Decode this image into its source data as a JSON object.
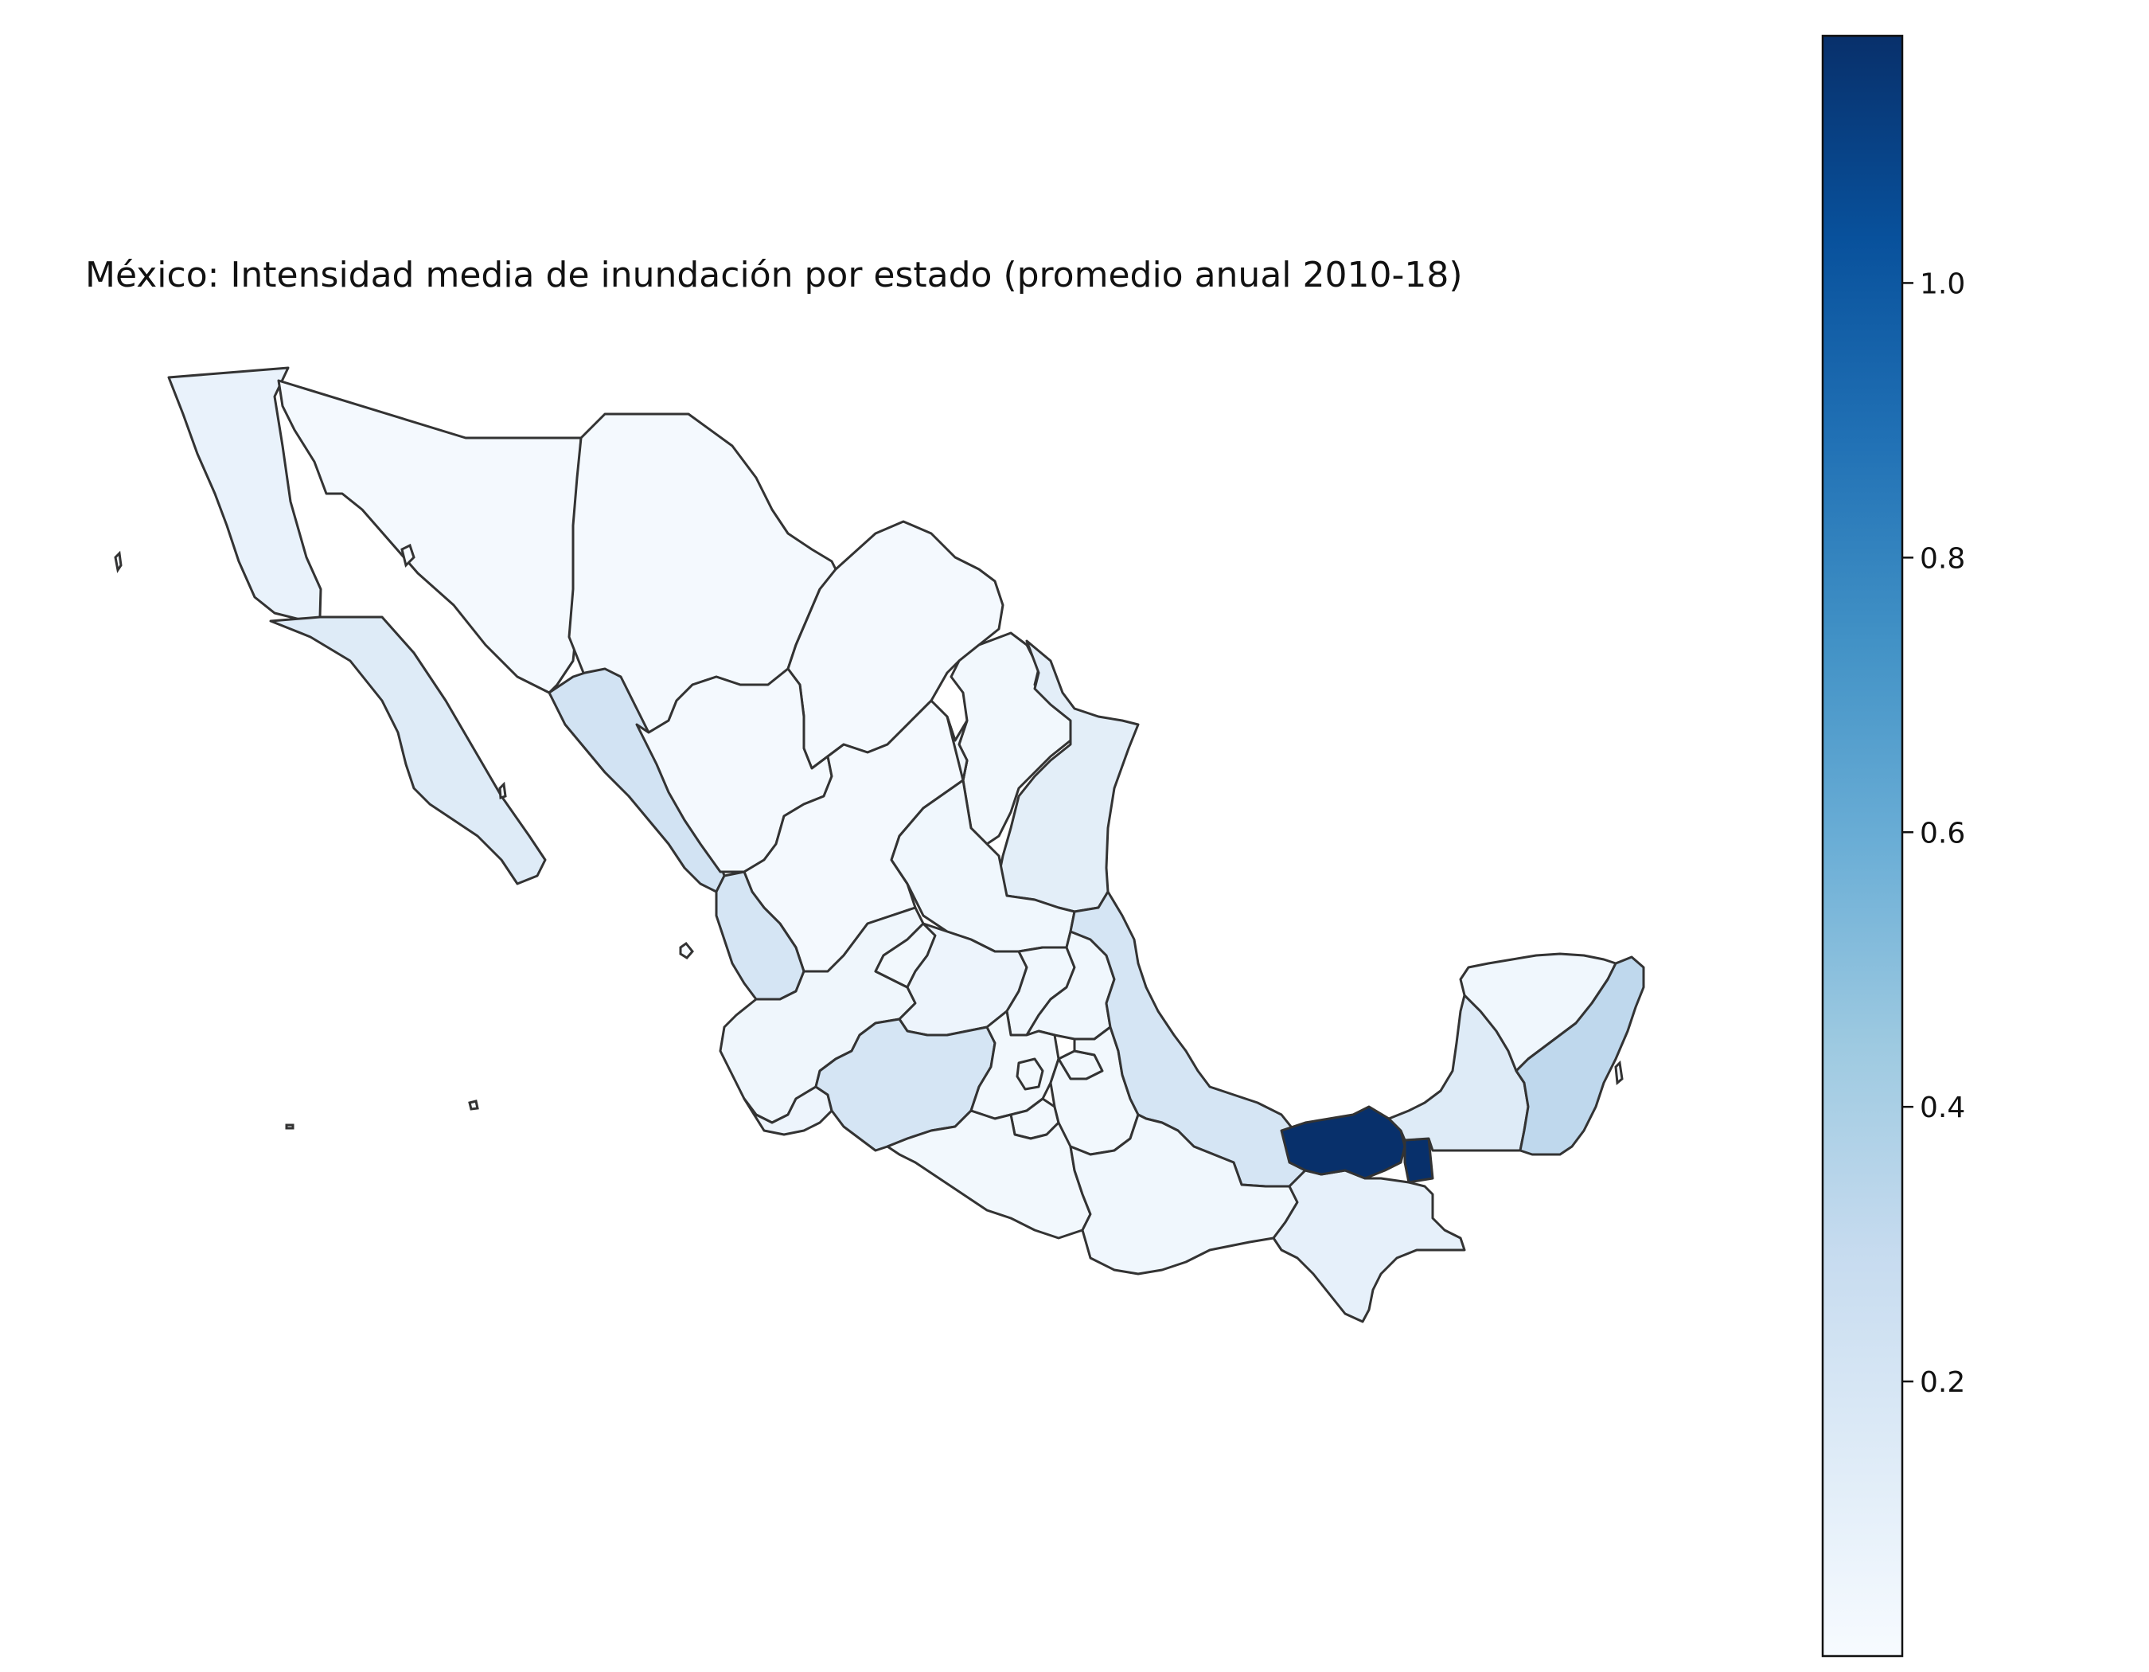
{
  "title": "México: Intensidad media de inundación por estado (promedio anual 2010-18)",
  "colorbar": {
    "colormap": "Blues",
    "min": 0.0,
    "max": 1.18,
    "ticks": [
      {
        "value": 0.2,
        "label": "0.2"
      },
      {
        "value": 0.4,
        "label": "0.4"
      },
      {
        "value": 0.6,
        "label": "0.6"
      },
      {
        "value": 0.8,
        "label": "0.8"
      },
      {
        "value": 1.0,
        "label": "1.0"
      }
    ]
  },
  "states": [
    {
      "name": "Baja California",
      "value": 0.08
    },
    {
      "name": "Baja California Sur",
      "value": 0.15
    },
    {
      "name": "Sonora",
      "value": 0.02
    },
    {
      "name": "Chihuahua",
      "value": 0.02
    },
    {
      "name": "Coahuila",
      "value": 0.02
    },
    {
      "name": "Nuevo León",
      "value": 0.03
    },
    {
      "name": "Tamaulipas",
      "value": 0.12
    },
    {
      "name": "Sinaloa",
      "value": 0.22
    },
    {
      "name": "Durango",
      "value": 0.02
    },
    {
      "name": "Zacatecas",
      "value": 0.02
    },
    {
      "name": "San Luis Potosí",
      "value": 0.04
    },
    {
      "name": "Nayarit",
      "value": 0.2
    },
    {
      "name": "Aguascalientes",
      "value": 0.03
    },
    {
      "name": "Jalisco",
      "value": 0.05
    },
    {
      "name": "Guanajuato",
      "value": 0.06
    },
    {
      "name": "Querétaro",
      "value": 0.04
    },
    {
      "name": "Hidalgo",
      "value": 0.04
    },
    {
      "name": "Veracruz",
      "value": 0.2
    },
    {
      "name": "Colima",
      "value": 0.06
    },
    {
      "name": "Michoacán",
      "value": 0.2
    },
    {
      "name": "México",
      "value": 0.03
    },
    {
      "name": "Ciudad de México",
      "value": 0.03
    },
    {
      "name": "Morelos",
      "value": 0.03
    },
    {
      "name": "Tlaxcala",
      "value": 0.03
    },
    {
      "name": "Puebla",
      "value": 0.03
    },
    {
      "name": "Guerrero",
      "value": 0.03
    },
    {
      "name": "Oaxaca",
      "value": 0.04
    },
    {
      "name": "Chiapas",
      "value": 0.1
    },
    {
      "name": "Tabasco",
      "value": 1.18
    },
    {
      "name": "Campeche",
      "value": 0.15
    },
    {
      "name": "Yucatán",
      "value": 0.04
    },
    {
      "name": "Quintana Roo",
      "value": 0.32
    }
  ]
}
